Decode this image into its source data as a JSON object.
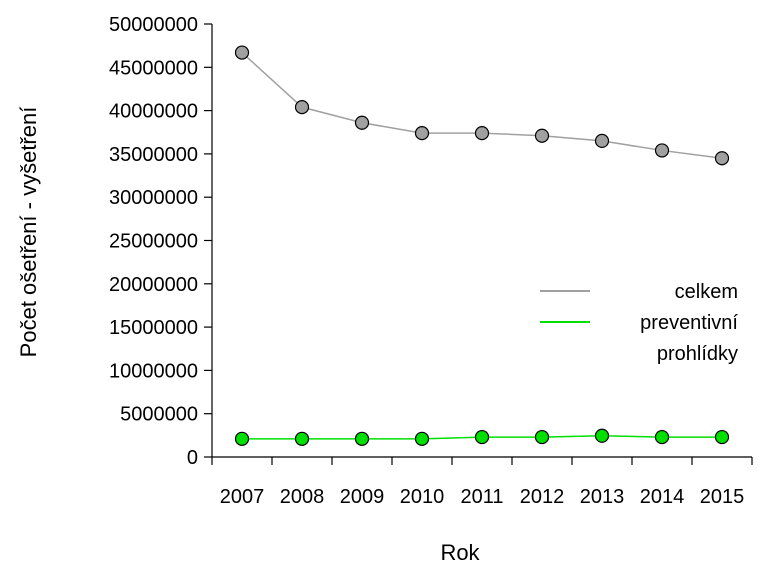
{
  "chart_data": {
    "type": "line",
    "categories": [
      "2007",
      "2008",
      "2009",
      "2010",
      "2011",
      "2012",
      "2013",
      "2014",
      "2015"
    ],
    "series": [
      {
        "name": "celkem",
        "values": [
          46700000,
          40400000,
          38600000,
          37400000,
          37400000,
          37100000,
          36500000,
          35400000,
          34500000
        ],
        "line_color": "#a0a0a0",
        "marker_color": "#a0a0a0"
      },
      {
        "name": "preventivní prohlídky",
        "name_lines": [
          "preventivní",
          "prohlídky"
        ],
        "values": [
          2100000,
          2100000,
          2100000,
          2100000,
          2300000,
          2300000,
          2450000,
          2300000,
          2300000
        ],
        "line_color": "#00e000",
        "marker_color": "#00e000"
      }
    ],
    "xlabel": "Rok",
    "ylabel": "Počet ošetření - vyšetření",
    "ylim": [
      0,
      50000000
    ],
    "yticks": [
      0,
      5000000,
      10000000,
      15000000,
      20000000,
      25000000,
      30000000,
      35000000,
      40000000,
      45000000,
      50000000
    ],
    "grid": false,
    "legend": "right"
  }
}
